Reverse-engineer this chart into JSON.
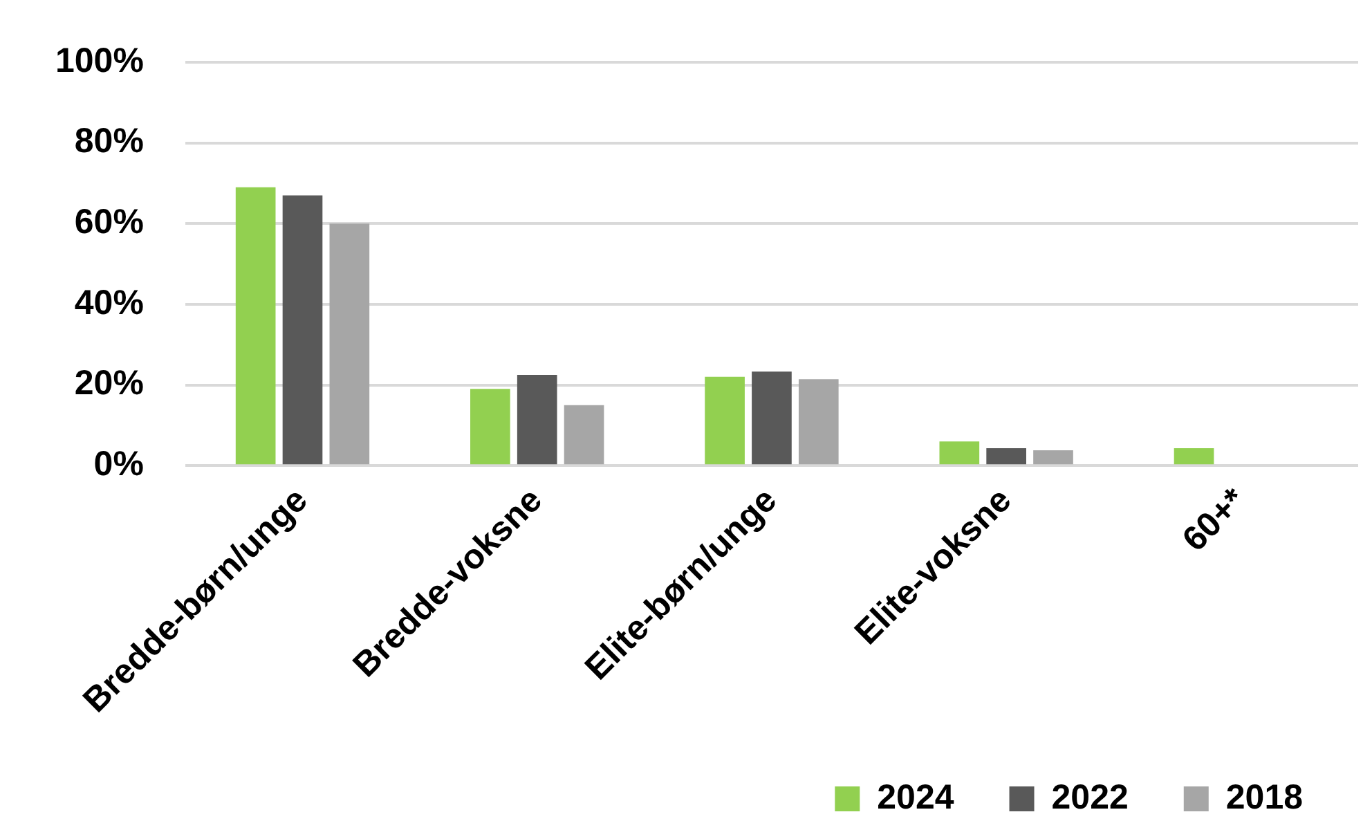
{
  "chart_data": {
    "type": "bar",
    "categories": [
      "Bredde-børn/unge",
      "Bredde-voksne",
      "Elite-børn/unge",
      "Elite-voksne",
      "60+*"
    ],
    "series": [
      {
        "name": "2024",
        "color": "#92d050",
        "values": [
          69,
          19,
          22,
          6,
          4.3
        ]
      },
      {
        "name": "2022",
        "color": "#595959",
        "values": [
          67,
          22.5,
          23.3,
          4.3,
          null
        ]
      },
      {
        "name": "2018",
        "color": "#a6a6a6",
        "values": [
          60,
          15,
          21.4,
          3.8,
          null
        ]
      }
    ],
    "ylim": [
      0,
      100
    ],
    "yticks": [
      {
        "value": 0,
        "label": "0%"
      },
      {
        "value": 20,
        "label": "20%"
      },
      {
        "value": 40,
        "label": "40%"
      },
      {
        "value": 60,
        "label": "60%"
      },
      {
        "value": 80,
        "label": "80%"
      },
      {
        "value": 100,
        "label": "100%"
      }
    ],
    "grid": "y",
    "legend": "bottom right"
  }
}
